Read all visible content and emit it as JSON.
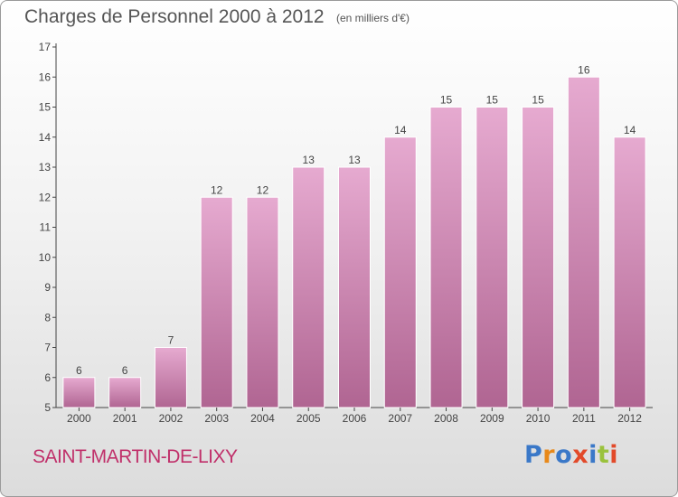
{
  "title": "Charges de Personnel 2000 à 2012",
  "subtitle": "(en milliers d'€)",
  "commune": "SAINT-MARTIN-DE-LIXY",
  "logo": {
    "text": "Proxiti",
    "letter_colors": [
      "#3a78c8",
      "#e8891a",
      "#3a78c8",
      "#e24a2a",
      "#3a78c8",
      "#9ac23c",
      "#e24a2a"
    ]
  },
  "colors": {
    "bar_top": "#e6aad0",
    "bar_bottom": "#b06592",
    "axis": "#444444",
    "label_text": "#444444"
  },
  "chart_data": {
    "type": "bar",
    "title": "Charges de Personnel 2000 à 2012",
    "subtitle": "(en milliers d'€)",
    "categories": [
      "2000",
      "2001",
      "2002",
      "2003",
      "2004",
      "2005",
      "2006",
      "2007",
      "2008",
      "2009",
      "2010",
      "2011",
      "2012"
    ],
    "values": [
      6,
      6,
      7,
      12,
      12,
      13,
      13,
      14,
      15,
      15,
      15,
      16,
      14
    ],
    "ylim": [
      5,
      17
    ],
    "yticks": [
      5,
      6,
      7,
      8,
      9,
      10,
      11,
      12,
      13,
      14,
      15,
      16,
      17
    ],
    "xlabel": "",
    "ylabel": "",
    "grid": false,
    "legend": "none",
    "data_labels": true
  }
}
